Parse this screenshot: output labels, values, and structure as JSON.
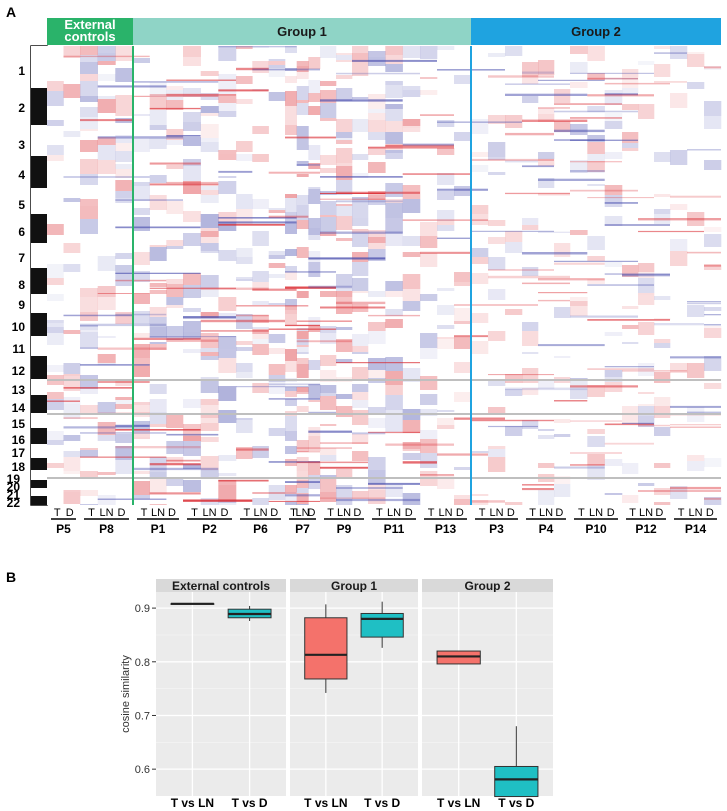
{
  "panel_a": {
    "label": "A",
    "groups": [
      {
        "name": "External\ncontrols",
        "color": "#2ab36a",
        "text_color": "#ffffff",
        "patients": [
          "P5",
          "P8"
        ]
      },
      {
        "name": "Group 1",
        "color": "#8fd4c6",
        "text_color": "#1a1a1a",
        "patients": [
          "P1",
          "P2",
          "P6",
          "P7",
          "P9",
          "P11",
          "P13"
        ]
      },
      {
        "name": "Group 2",
        "color": "#1fa3e0",
        "text_color": "#1a1a1a",
        "patients": [
          "P3",
          "P4",
          "P10",
          "P12",
          "P14"
        ]
      }
    ],
    "sample_labels": {
      "P5": [
        "T",
        "D"
      ],
      "P8": [
        "T",
        "LN",
        "D"
      ],
      "P1": [
        "T",
        "LN",
        "D"
      ],
      "P2": [
        "T",
        "LN",
        "D"
      ],
      "P6": [
        "T",
        "LN",
        "D"
      ],
      "P7": [
        "T",
        "LN",
        "D"
      ],
      "P9": [
        "T",
        "LN",
        "D"
      ],
      "P11": [
        "T",
        "LN",
        "D"
      ],
      "P13": [
        "T",
        "LN",
        "D"
      ],
      "P3": [
        "T",
        "LN",
        "D"
      ],
      "P4": [
        "T",
        "LN",
        "D"
      ],
      "P10": [
        "T",
        "LN",
        "D"
      ],
      "P12": [
        "T",
        "LN",
        "D"
      ],
      "P14": [
        "T",
        "LN",
        "D"
      ]
    },
    "chromosomes": [
      "1",
      "2",
      "3",
      "4",
      "5",
      "6",
      "7",
      "8",
      "9",
      "10",
      "11",
      "12",
      "13",
      "14",
      "15",
      "16",
      "17",
      "18",
      "19",
      "20",
      "21",
      "22"
    ],
    "heatmap_colors": {
      "gain": "#d9242b",
      "loss": "#4a4fae",
      "neutral": "#ffffff"
    }
  },
  "chart_data": {
    "label": "B",
    "type": "box",
    "ylabel": "cosine similarity",
    "ylim": [
      0.55,
      0.93
    ],
    "yticks": [
      0.6,
      0.7,
      0.8,
      0.9
    ],
    "grid": true,
    "series_colors": {
      "T vs LN": "#f4726b",
      "T vs D": "#1fbfc4"
    },
    "facets": [
      {
        "name": "External controls",
        "boxes": [
          {
            "category": "T vs LN",
            "min": 0.908,
            "q1": 0.908,
            "median": 0.908,
            "q3": 0.908,
            "max": 0.908
          },
          {
            "category": "T vs D",
            "min": 0.876,
            "q1": 0.882,
            "median": 0.889,
            "q3": 0.898,
            "max": 0.904
          }
        ]
      },
      {
        "name": "Group 1",
        "boxes": [
          {
            "category": "T vs LN",
            "min": 0.742,
            "q1": 0.768,
            "median": 0.813,
            "q3": 0.882,
            "max": 0.907
          },
          {
            "category": "T vs D",
            "min": 0.826,
            "q1": 0.846,
            "median": 0.88,
            "q3": 0.89,
            "max": 0.912
          }
        ]
      },
      {
        "name": "Group 2",
        "boxes": [
          {
            "category": "T vs LN",
            "min": 0.796,
            "q1": 0.796,
            "median": 0.81,
            "q3": 0.82,
            "max": 0.82
          },
          {
            "category": "T vs D",
            "min": 0.549,
            "q1": 0.549,
            "median": 0.581,
            "q3": 0.605,
            "max": 0.68
          }
        ]
      }
    ]
  }
}
